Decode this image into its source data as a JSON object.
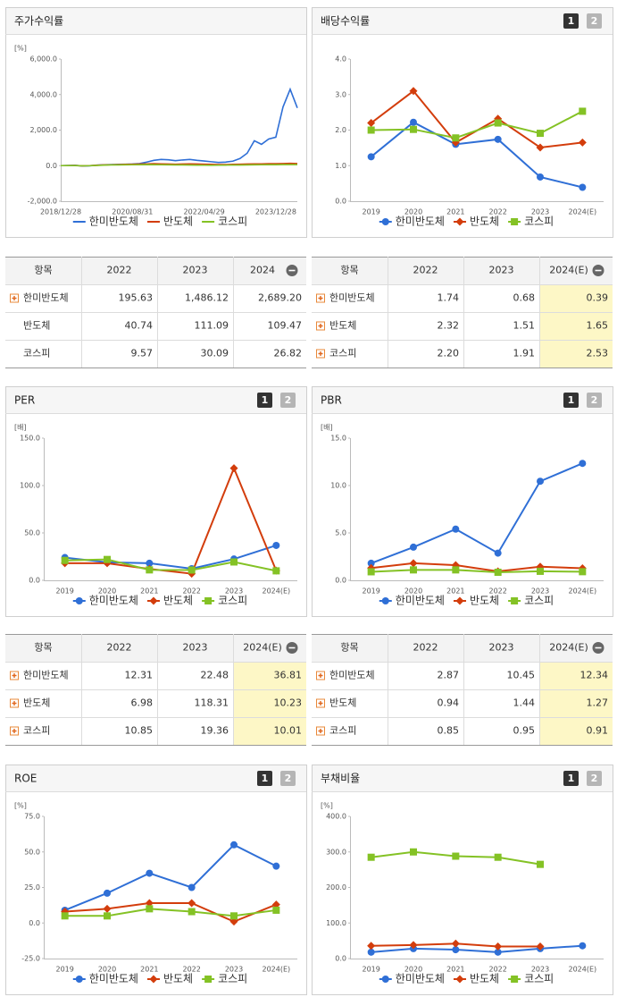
{
  "chart_data": [
    {
      "type": "line",
      "title": "주가수익률",
      "y_unit": "[%]",
      "markers": false,
      "categories": [
        "2018/12/28",
        null,
        null,
        null,
        null,
        null,
        null,
        null,
        null,
        null,
        "2020/08/31",
        null,
        null,
        null,
        null,
        null,
        null,
        null,
        null,
        null,
        "2022/04/29",
        null,
        null,
        null,
        null,
        null,
        null,
        null,
        null,
        null,
        "2023/12/28",
        null,
        null,
        null
      ],
      "series": [
        {
          "name": "한미반도체",
          "color": "#2f6fd6",
          "marker": "circle",
          "values": [
            0,
            10,
            20,
            -20,
            -10,
            30,
            50,
            60,
            70,
            80,
            90,
            120,
            200,
            300,
            350,
            330,
            280,
            320,
            350,
            300,
            260,
            220,
            180,
            200,
            250,
            400,
            700,
            1400,
            1200,
            1500,
            1600,
            3300,
            4300,
            3250
          ]
        },
        {
          "name": "반도체",
          "color": "#d33d0c",
          "marker": "diamond",
          "values": [
            0,
            5,
            10,
            -10,
            0,
            20,
            40,
            50,
            60,
            70,
            80,
            90,
            100,
            110,
            100,
            90,
            80,
            90,
            100,
            90,
            80,
            70,
            60,
            60,
            70,
            80,
            90,
            100,
            100,
            110,
            110,
            120,
            130,
            120
          ]
        },
        {
          "name": "코스피",
          "color": "#84c225",
          "marker": "square",
          "values": [
            0,
            5,
            5,
            -10,
            -5,
            10,
            30,
            40,
            40,
            45,
            50,
            55,
            60,
            55,
            50,
            45,
            40,
            40,
            35,
            30,
            25,
            20,
            25,
            30,
            35,
            35,
            40,
            45,
            50,
            55,
            55,
            60,
            60,
            60
          ]
        }
      ],
      "ylim": [
        -2000,
        6000
      ],
      "yticks": [
        {
          "value": -2000,
          "label": "-2,000.0"
        },
        {
          "value": 0,
          "label": "0.0"
        },
        {
          "value": 2000,
          "label": "2,000.0"
        },
        {
          "value": 4000,
          "label": "4,000.0"
        },
        {
          "value": 6000,
          "label": "6,000.0"
        }
      ]
    },
    {
      "type": "line",
      "title": "배당수익률",
      "buttons": [
        "1",
        "2"
      ],
      "markers": true,
      "categories": [
        "2019",
        "2020",
        "2021",
        "2022",
        "2023",
        "2024(E)"
      ],
      "series": [
        {
          "name": "한미반도체",
          "color": "#2f6fd6",
          "marker": "circle",
          "values": [
            1.25,
            2.22,
            1.6,
            1.74,
            0.68,
            0.39
          ]
        },
        {
          "name": "반도체",
          "color": "#d33d0c",
          "marker": "diamond",
          "values": [
            2.2,
            3.1,
            1.65,
            2.32,
            1.51,
            1.65
          ]
        },
        {
          "name": "코스피",
          "color": "#84c225",
          "marker": "square",
          "values": [
            2.0,
            2.02,
            1.78,
            2.2,
            1.91,
            2.53
          ]
        }
      ],
      "ylim": [
        0,
        4
      ],
      "yticks": [
        {
          "value": 0,
          "label": "0.0"
        },
        {
          "value": 1,
          "label": "1.0"
        },
        {
          "value": 2,
          "label": "2.0"
        },
        {
          "value": 3,
          "label": "3.0"
        },
        {
          "value": 4,
          "label": "4.0"
        }
      ]
    },
    {
      "type": "line",
      "title": "PER",
      "buttons": [
        "1",
        "2"
      ],
      "y_unit": "[배]",
      "markers": true,
      "categories": [
        "2019",
        "2020",
        "2021",
        "2022",
        "2023",
        "2024(E)"
      ],
      "series": [
        {
          "name": "한미반도체",
          "color": "#2f6fd6",
          "marker": "circle",
          "values": [
            24,
            19,
            18,
            12.31,
            22.48,
            36.81
          ]
        },
        {
          "name": "반도체",
          "color": "#d33d0c",
          "marker": "diamond",
          "values": [
            18,
            18,
            12,
            6.98,
            118.31,
            10.23
          ]
        },
        {
          "name": "코스피",
          "color": "#84c225",
          "marker": "square",
          "values": [
            21,
            22,
            11,
            10.85,
            19.36,
            10.01
          ]
        }
      ],
      "ylim": [
        0,
        150
      ],
      "yticks": [
        {
          "value": 0,
          "label": "0.0"
        },
        {
          "value": 50,
          "label": "50.0"
        },
        {
          "value": 100,
          "label": "100.0"
        },
        {
          "value": 150,
          "label": "150.0"
        }
      ]
    },
    {
      "type": "line",
      "title": "PBR",
      "buttons": [
        "1",
        "2"
      ],
      "y_unit": "[배]",
      "markers": true,
      "categories": [
        "2019",
        "2020",
        "2021",
        "2022",
        "2023",
        "2024(E)"
      ],
      "series": [
        {
          "name": "한미반도체",
          "color": "#2f6fd6",
          "marker": "circle",
          "values": [
            1.8,
            3.5,
            5.4,
            2.87,
            10.45,
            12.34
          ]
        },
        {
          "name": "반도체",
          "color": "#d33d0c",
          "marker": "diamond",
          "values": [
            1.3,
            1.8,
            1.6,
            0.94,
            1.44,
            1.27
          ]
        },
        {
          "name": "코스피",
          "color": "#84c225",
          "marker": "square",
          "values": [
            0.9,
            1.1,
            1.1,
            0.85,
            0.95,
            0.91
          ]
        }
      ],
      "ylim": [
        0,
        15
      ],
      "yticks": [
        {
          "value": 0,
          "label": "0.0"
        },
        {
          "value": 5,
          "label": "5.0"
        },
        {
          "value": 10,
          "label": "10.0"
        },
        {
          "value": 15,
          "label": "15.0"
        }
      ]
    },
    {
      "type": "line",
      "title": "ROE",
      "buttons": [
        "1",
        "2"
      ],
      "y_unit": "[%]",
      "markers": true,
      "categories": [
        "2019",
        "2020",
        "2021",
        "2022",
        "2023",
        "2024(E)"
      ],
      "series": [
        {
          "name": "한미반도체",
          "color": "#2f6fd6",
          "marker": "circle",
          "values": [
            9,
            21,
            35,
            25,
            55,
            40
          ]
        },
        {
          "name": "반도체",
          "color": "#d33d0c",
          "marker": "diamond",
          "values": [
            8,
            10,
            14,
            14,
            1,
            13
          ]
        },
        {
          "name": "코스피",
          "color": "#84c225",
          "marker": "square",
          "values": [
            5,
            5,
            10,
            8,
            5,
            9
          ]
        }
      ],
      "ylim": [
        -25,
        75
      ],
      "yticks": [
        {
          "value": -25,
          "label": "-25.0"
        },
        {
          "value": 0,
          "label": "0.0"
        },
        {
          "value": 25,
          "label": "25.0"
        },
        {
          "value": 50,
          "label": "50.0"
        },
        {
          "value": 75,
          "label": "75.0"
        }
      ]
    },
    {
      "type": "line",
      "title": "부채비율",
      "buttons": [
        "1",
        "2"
      ],
      "y_unit": "[%]",
      "markers": true,
      "categories": [
        "2019",
        "2020",
        "2021",
        "2022",
        "2023",
        "2024(E)"
      ],
      "series": [
        {
          "name": "한미반도체",
          "color": "#2f6fd6",
          "marker": "circle",
          "values": [
            18,
            28,
            25,
            18,
            28,
            36
          ]
        },
        {
          "name": "반도체",
          "color": "#d33d0c",
          "marker": "diamond",
          "values": [
            36,
            38,
            42,
            34,
            34,
            null
          ]
        },
        {
          "name": "코스피",
          "color": "#84c225",
          "marker": "square",
          "values": [
            285,
            300,
            288,
            285,
            265,
            null
          ]
        }
      ],
      "ylim": [
        0,
        400
      ],
      "yticks": [
        {
          "value": 0,
          "label": "0.0"
        },
        {
          "value": 100,
          "label": "100.0"
        },
        {
          "value": 200,
          "label": "200.0"
        },
        {
          "value": 300,
          "label": "300.0"
        },
        {
          "value": 400,
          "label": "400.0"
        }
      ]
    }
  ],
  "tables": [
    {
      "header": [
        "항목",
        "2022",
        "2023",
        "2024"
      ],
      "rows": [
        {
          "name": "한미반도체",
          "expandable": true,
          "cells": [
            "195.63",
            "1,486.12",
            "2,689.20"
          ]
        },
        {
          "name": "반도체",
          "expandable": false,
          "cells": [
            "40.74",
            "111.09",
            "109.47"
          ]
        },
        {
          "name": "코스피",
          "expandable": false,
          "cells": [
            "9.57",
            "30.09",
            "26.82"
          ]
        }
      ]
    },
    {
      "header": [
        "항목",
        "2022",
        "2023",
        "2024(E)"
      ],
      "highlight_color": "#fdf7c6",
      "rows": [
        {
          "name": "한미반도체",
          "expandable": true,
          "cells": [
            "1.74",
            "0.68",
            "0.39"
          ]
        },
        {
          "name": "반도체",
          "expandable": true,
          "cells": [
            "2.32",
            "1.51",
            "1.65"
          ]
        },
        {
          "name": "코스피",
          "expandable": true,
          "cells": [
            "2.20",
            "1.91",
            "2.53"
          ]
        }
      ]
    },
    {
      "header": [
        "항목",
        "2022",
        "2023",
        "2024(E)"
      ],
      "highlight_color": "#fdf7c6",
      "rows": [
        {
          "name": "한미반도체",
          "expandable": true,
          "cells": [
            "12.31",
            "22.48",
            "36.81"
          ]
        },
        {
          "name": "반도체",
          "expandable": true,
          "cells": [
            "6.98",
            "118.31",
            "10.23"
          ]
        },
        {
          "name": "코스피",
          "expandable": true,
          "cells": [
            "10.85",
            "19.36",
            "10.01"
          ]
        }
      ]
    },
    {
      "header": [
        "항목",
        "2022",
        "2023",
        "2024(E)"
      ],
      "highlight_color": "#fdf7c6",
      "rows": [
        {
          "name": "한미반도체",
          "expandable": true,
          "cells": [
            "2.87",
            "10.45",
            "12.34"
          ]
        },
        {
          "name": "반도체",
          "expandable": true,
          "cells": [
            "0.94",
            "1.44",
            "1.27"
          ]
        },
        {
          "name": "코스피",
          "expandable": true,
          "cells": [
            "0.85",
            "0.95",
            "0.91"
          ]
        }
      ]
    }
  ]
}
